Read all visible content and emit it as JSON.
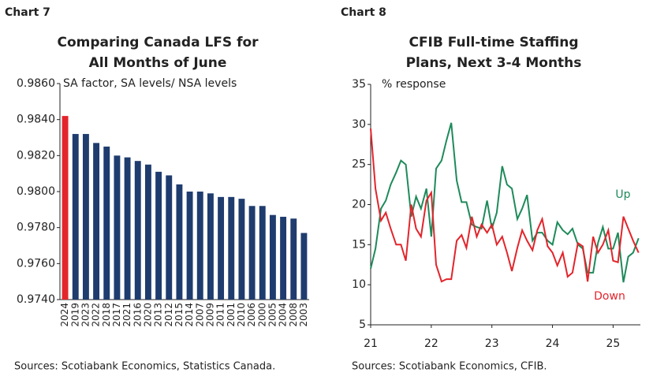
{
  "chart_data": [
    {
      "type": "bar",
      "label": "Chart 7",
      "title": [
        "Comparing Canada LFS for",
        "All Months of June"
      ],
      "annotation": "SA factor, SA levels/ NSA levels",
      "categories": [
        "2024",
        "2019",
        "2023",
        "2022",
        "2018",
        "2017",
        "2021",
        "2016",
        "2020",
        "2013",
        "2012",
        "2015",
        "2014",
        "2007",
        "2009",
        "2011",
        "2001",
        "2010",
        "2006",
        "2000",
        "2005",
        "2004",
        "2008",
        "2003"
      ],
      "values": [
        0.9842,
        0.9832,
        0.9832,
        0.9827,
        0.9825,
        0.982,
        0.9819,
        0.9817,
        0.9815,
        0.9811,
        0.9809,
        0.9804,
        0.98,
        0.98,
        0.9799,
        0.9797,
        0.9797,
        0.9796,
        0.9792,
        0.9792,
        0.9787,
        0.9786,
        0.9785,
        0.9777
      ],
      "colors": [
        "#e3242b",
        "#1f3c6e",
        "#1f3c6e",
        "#1f3c6e",
        "#1f3c6e",
        "#1f3c6e",
        "#1f3c6e",
        "#1f3c6e",
        "#1f3c6e",
        "#1f3c6e",
        "#1f3c6e",
        "#1f3c6e",
        "#1f3c6e",
        "#1f3c6e",
        "#1f3c6e",
        "#1f3c6e",
        "#1f3c6e",
        "#1f3c6e",
        "#1f3c6e",
        "#1f3c6e",
        "#1f3c6e",
        "#1f3c6e",
        "#1f3c6e",
        "#1f3c6e"
      ],
      "ylim": [
        0.974,
        0.986
      ],
      "yticks": [
        {
          "value": 0.974,
          "label": "0.9740"
        },
        {
          "value": 0.976,
          "label": "0.9760"
        },
        {
          "value": 0.978,
          "label": "0.9780"
        },
        {
          "value": 0.98,
          "label": "0.9800"
        },
        {
          "value": 0.982,
          "label": "0.9820"
        },
        {
          "value": 0.984,
          "label": "0.9840"
        },
        {
          "value": 0.986,
          "label": "0.9860"
        }
      ],
      "source": "Sources: Scotiabank Economics, Statistics Canada."
    },
    {
      "type": "line",
      "label": "Chart 8",
      "title": [
        "CFIB Full-time Staffing",
        "Plans, Next 3-4 Months"
      ],
      "y_label": "% response",
      "x": [
        21,
        21.08,
        21.17,
        21.25,
        21.33,
        21.42,
        21.5,
        21.58,
        21.67,
        21.75,
        21.83,
        21.92,
        22,
        22.08,
        22.17,
        22.25,
        22.33,
        22.42,
        22.5,
        22.58,
        22.67,
        22.75,
        22.83,
        22.92,
        23,
        23.08,
        23.17,
        23.25,
        23.33,
        23.42,
        23.5,
        23.58,
        23.67,
        23.75,
        23.83,
        23.92,
        24,
        24.08,
        24.17,
        24.25,
        24.33,
        24.42,
        24.5,
        24.58,
        24.67,
        24.75,
        24.83,
        24.92,
        25,
        25.08,
        25.17,
        25.25,
        25.33,
        25.42
      ],
      "series": [
        {
          "name": "Up",
          "color": "#1e8a5a",
          "values": [
            12,
            14.5,
            19.5,
            20.5,
            22.5,
            24,
            25.5,
            25,
            18.5,
            21,
            19.5,
            22,
            16,
            24.5,
            25.5,
            28,
            30.2,
            23,
            20.3,
            20.3,
            17.5,
            17.2,
            17,
            20.5,
            17,
            19,
            24.8,
            22.5,
            22,
            18.2,
            19.5,
            21.2,
            15.5,
            16.5,
            16.5,
            15.5,
            15,
            17.8,
            16.8,
            16.3,
            17,
            15,
            14.5,
            11.5,
            11.5,
            15.2,
            17.2,
            14.5,
            14.5,
            16.5,
            10.3,
            13.5,
            14,
            15.8
          ]
        },
        {
          "name": "Down",
          "color": "#e3242b",
          "values": [
            29.5,
            22,
            18,
            19,
            17,
            15,
            15,
            13,
            20,
            17,
            16,
            20.5,
            21.5,
            12.5,
            10.4,
            10.7,
            10.7,
            15.5,
            16.2,
            14.6,
            18.5,
            16,
            17.5,
            16.5,
            17.5,
            15,
            16,
            14,
            11.7,
            14.6,
            16.8,
            15.5,
            14.3,
            16.8,
            18.2,
            14.8,
            14,
            12.4,
            14,
            11,
            11.5,
            15.2,
            14.8,
            10.4,
            16,
            14,
            15,
            16.8,
            13,
            12.8,
            18.5,
            17,
            15.5,
            14
          ]
        }
      ],
      "xlim": [
        21,
        25.45
      ],
      "xticks": [
        21,
        22,
        23,
        24,
        25
      ],
      "ylim": [
        5,
        35
      ],
      "yticks": [
        5,
        10,
        15,
        20,
        25,
        30,
        35
      ],
      "source": "Sources: Scotiabank Economics, CFIB."
    }
  ]
}
